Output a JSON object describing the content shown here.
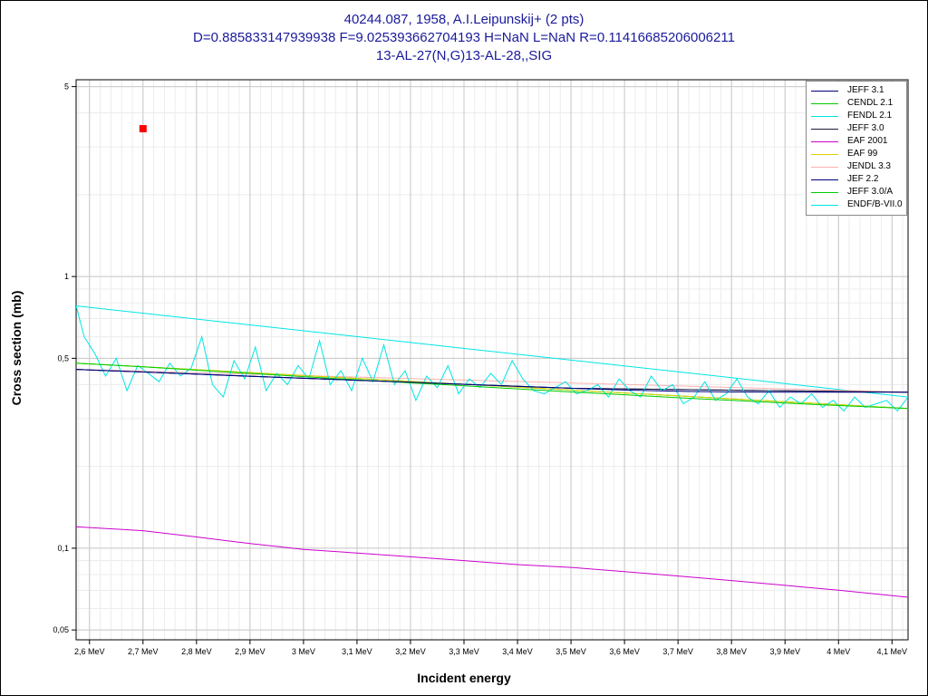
{
  "title_lines": [
    "40244.087, 1958, A.I.Leipunskij+ (2 pts)",
    "D=0.885833147939938 F=9.025393662704193 H=NaN L=NaN R=0.11416685206006211",
    "13-AL-27(N,G)13-AL-28,,SIG"
  ],
  "chart_data": {
    "type": "line",
    "title": "40244.087, 1958, A.I.Leipunskij+ (2 pts)",
    "xlabel": "Incident energy",
    "ylabel": "Cross section (mb)",
    "xscale": "linear",
    "yscale": "log",
    "xlim": [
      2.575,
      4.13
    ],
    "ylim": [
      0.046,
      5.3
    ],
    "x_ticks": [
      2.6,
      2.7,
      2.8,
      2.9,
      3.0,
      3.1,
      3.2,
      3.3,
      3.4,
      3.5,
      3.6,
      3.7,
      3.8,
      3.9,
      4.0,
      4.1
    ],
    "x_tick_labels": [
      "2,6 MeV",
      "2,7 MeV",
      "2,8 MeV",
      "2,9 MeV",
      "3 MeV",
      "3,1 MeV",
      "3,2 MeV",
      "3,3 MeV",
      "3,4 MeV",
      "3,5 MeV",
      "3,6 MeV",
      "3,7 MeV",
      "3,8 MeV",
      "3,9 MeV",
      "4 MeV",
      "4,1 MeV"
    ],
    "y_ticks": [
      0.05,
      0.1,
      0.5,
      1,
      5
    ],
    "y_tick_labels": [
      "0,05",
      "0,1",
      "0,5",
      "1",
      "5"
    ],
    "grid": true,
    "legend_position": "top-right",
    "series": [
      {
        "name": "JEFF 3.1",
        "color": "#000080",
        "x": [
          2.575,
          2.7,
          2.8,
          2.9,
          3.0,
          3.1,
          3.2,
          3.3,
          3.4,
          3.5,
          3.6,
          3.7,
          3.8,
          3.9,
          4.0,
          4.13
        ],
        "y": [
          0.455,
          0.445,
          0.437,
          0.429,
          0.422,
          0.415,
          0.408,
          0.401,
          0.394,
          0.388,
          0.382,
          0.378,
          0.376,
          0.375,
          0.375,
          0.375
        ]
      },
      {
        "name": "CENDL 2.1",
        "color": "#00cc00",
        "x": [
          2.575,
          2.7,
          2.8,
          2.9,
          3.0,
          3.1,
          3.2,
          3.3,
          3.4,
          3.5,
          3.6,
          3.7,
          3.8,
          3.9,
          4.0,
          4.13
        ],
        "y": [
          0.48,
          0.465,
          0.452,
          0.44,
          0.428,
          0.417,
          0.406,
          0.396,
          0.386,
          0.376,
          0.367,
          0.358,
          0.35,
          0.342,
          0.335,
          0.327
        ]
      },
      {
        "name": "FENDL 2.1",
        "color": "#00e5e5",
        "x": [
          2.575,
          2.59,
          2.61,
          2.63,
          2.65,
          2.67,
          2.69,
          2.71,
          2.73,
          2.75,
          2.77,
          2.79,
          2.81,
          2.83,
          2.85,
          2.87,
          2.89,
          2.91,
          2.93,
          2.95,
          2.97,
          2.99,
          3.01,
          3.03,
          3.05,
          3.07,
          3.09,
          3.11,
          3.13,
          3.15,
          3.17,
          3.19,
          3.21,
          3.23,
          3.25,
          3.27,
          3.29,
          3.31,
          3.33,
          3.35,
          3.37,
          3.39,
          3.41,
          3.43,
          3.45,
          3.47,
          3.49,
          3.51,
          3.53,
          3.55,
          3.57,
          3.59,
          3.61,
          3.63,
          3.65,
          3.67,
          3.69,
          3.71,
          3.73,
          3.75,
          3.77,
          3.79,
          3.81,
          3.83,
          3.85,
          3.87,
          3.89,
          3.91,
          3.93,
          3.95,
          3.97,
          3.99,
          4.01,
          4.03,
          4.05,
          4.07,
          4.09,
          4.11,
          4.13
        ],
        "y": [
          0.78,
          0.6,
          0.52,
          0.43,
          0.5,
          0.38,
          0.47,
          0.44,
          0.41,
          0.48,
          0.43,
          0.46,
          0.6,
          0.4,
          0.36,
          0.49,
          0.42,
          0.55,
          0.38,
          0.44,
          0.4,
          0.47,
          0.42,
          0.58,
          0.4,
          0.45,
          0.38,
          0.5,
          0.41,
          0.56,
          0.4,
          0.45,
          0.35,
          0.43,
          0.39,
          0.47,
          0.37,
          0.42,
          0.39,
          0.44,
          0.4,
          0.49,
          0.42,
          0.38,
          0.37,
          0.39,
          0.41,
          0.37,
          0.38,
          0.4,
          0.36,
          0.42,
          0.38,
          0.36,
          0.43,
          0.38,
          0.4,
          0.34,
          0.36,
          0.41,
          0.35,
          0.37,
          0.42,
          0.36,
          0.34,
          0.38,
          0.33,
          0.36,
          0.34,
          0.37,
          0.33,
          0.35,
          0.32,
          0.36,
          0.33,
          0.34,
          0.35,
          0.32,
          0.36
        ]
      },
      {
        "name": "JEFF 3.0",
        "color": "#1a1a3a",
        "x": [
          2.575,
          3.0,
          3.5,
          4.13
        ],
        "y": [
          0.455,
          0.422,
          0.388,
          0.375
        ]
      },
      {
        "name": "EAF 2001",
        "color": "#cc00cc",
        "x": [
          2.575,
          2.7,
          2.8,
          2.9,
          3.0,
          3.1,
          3.2,
          3.3,
          3.4,
          3.5,
          3.6,
          3.7,
          3.8,
          3.9,
          4.0,
          4.13
        ],
        "y": [
          0.12,
          0.116,
          0.11,
          0.104,
          0.099,
          0.096,
          0.093,
          0.09,
          0.087,
          0.085,
          0.082,
          0.079,
          0.076,
          0.073,
          0.07,
          0.066
        ]
      },
      {
        "name": "EAF 99",
        "color": "#e0d000",
        "x": [
          2.575,
          4.13
        ],
        "y": [
          0.48,
          0.327
        ]
      },
      {
        "name": "JENDL 3.3",
        "color": "#ffb0b0",
        "x": [
          2.575,
          4.13
        ],
        "y": [
          0.455,
          0.375
        ]
      },
      {
        "name": "JEF 2.2",
        "color": "#000080",
        "x": [
          2.575,
          3.0,
          3.5,
          4.13
        ],
        "y": [
          0.455,
          0.422,
          0.388,
          0.375
        ]
      },
      {
        "name": "JEFF 3.0/A",
        "color": "#00cc00",
        "x": [
          2.575,
          4.13
        ],
        "y": [
          0.48,
          0.327
        ]
      },
      {
        "name": "ENDF/B-VII.0",
        "color": "#00e5e5",
        "x": [
          2.575,
          4.13
        ],
        "y": [
          0.78,
          0.36
        ]
      }
    ],
    "points": [
      {
        "x": 2.7,
        "y": 3.5,
        "color": "#ff0000"
      }
    ]
  }
}
